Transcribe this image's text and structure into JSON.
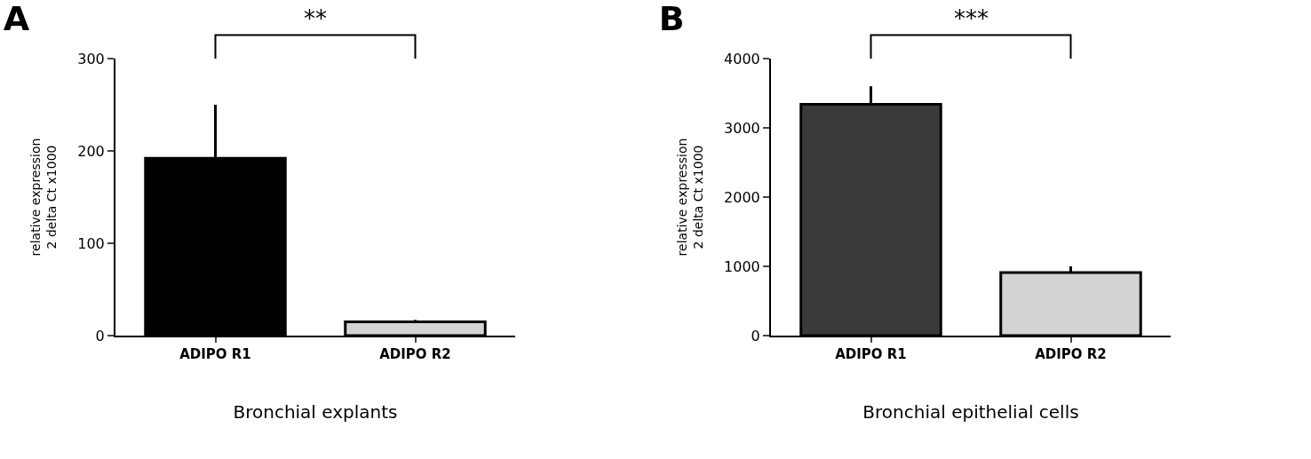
{
  "chart_data": [
    {
      "type": "bar",
      "title": "A",
      "xlabel": "Bronchial explants",
      "ylabel": "relative expression\n2 delta Ct x1000",
      "categories": [
        "ADIPO R1",
        "ADIPO R2"
      ],
      "values": [
        192,
        15
      ],
      "colors": [
        "#000000",
        "#d3d3d3"
      ],
      "errors": [
        [
          192,
          250
        ],
        [
          15,
          17
        ]
      ],
      "ylim": [
        0,
        300
      ],
      "yticks": [
        0,
        100,
        200,
        300
      ],
      "annotations": [
        "**"
      ]
    },
    {
      "type": "bar",
      "title": "B",
      "xlabel": "Bronchial epithelial cells",
      "ylabel": "relative expression\n2 delta Ct x1000",
      "categories": [
        "ADIPO R1",
        "ADIPO R2"
      ],
      "values": [
        3340,
        910
      ],
      "colors": [
        "#3a3a3a",
        "#d3d3d3"
      ],
      "errors": [
        [
          3340,
          3600
        ],
        [
          910,
          1000
        ]
      ],
      "ylim": [
        0,
        4000
      ],
      "yticks": [
        0,
        1000,
        2000,
        3000,
        4000
      ],
      "annotations": [
        "***"
      ]
    }
  ]
}
